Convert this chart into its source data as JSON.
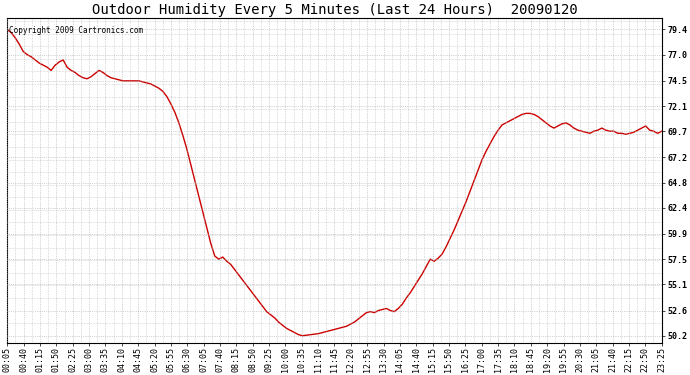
{
  "title": "Outdoor Humidity Every 5 Minutes (Last 24 Hours)  20090120",
  "copyright_text": "Copyright 2009 Cartronics.com",
  "background_color": "#ffffff",
  "plot_bg_color": "#ffffff",
  "line_color": "#cc0000",
  "line_width": 1.0,
  "ylim": [
    49.5,
    80.5
  ],
  "yticks": [
    50.2,
    52.6,
    55.1,
    57.5,
    59.9,
    62.4,
    64.8,
    67.2,
    69.7,
    72.1,
    74.5,
    77.0,
    79.4
  ],
  "grid_color": "#aaaaaa",
  "title_fontsize": 10,
  "tick_fontsize": 6,
  "copyright_fontsize": 5.5,
  "xtick_labels": [
    "00:05",
    "00:40",
    "01:15",
    "01:50",
    "02:25",
    "03:00",
    "03:35",
    "04:10",
    "04:45",
    "05:20",
    "05:55",
    "06:30",
    "07:05",
    "07:40",
    "08:15",
    "08:50",
    "09:25",
    "10:00",
    "10:35",
    "11:10",
    "11:45",
    "12:20",
    "12:55",
    "13:30",
    "14:05",
    "14:40",
    "15:15",
    "15:50",
    "16:25",
    "17:00",
    "17:35",
    "18:10",
    "18:45",
    "19:20",
    "19:55",
    "20:30",
    "21:05",
    "21:40",
    "22:15",
    "22:50",
    "23:25"
  ],
  "humidity_values": [
    79.4,
    79.1,
    78.6,
    78.0,
    77.3,
    77.0,
    76.8,
    76.5,
    76.2,
    76.0,
    75.8,
    75.5,
    76.0,
    76.3,
    76.5,
    75.8,
    75.5,
    75.3,
    75.0,
    74.8,
    74.7,
    74.9,
    75.2,
    75.5,
    75.3,
    75.0,
    74.8,
    74.7,
    74.6,
    74.5,
    74.5,
    74.5,
    74.5,
    74.5,
    74.4,
    74.3,
    74.2,
    74.0,
    73.8,
    73.5,
    73.0,
    72.3,
    71.5,
    70.5,
    69.3,
    68.0,
    66.5,
    65.0,
    63.5,
    62.0,
    60.5,
    59.0,
    57.8,
    57.5,
    57.7,
    57.3,
    57.0,
    56.5,
    56.0,
    55.5,
    55.0,
    54.5,
    54.0,
    53.5,
    53.0,
    52.5,
    52.2,
    51.9,
    51.5,
    51.2,
    50.9,
    50.7,
    50.5,
    50.3,
    50.2,
    50.25,
    50.3,
    50.35,
    50.4,
    50.5,
    50.6,
    50.7,
    50.8,
    50.9,
    51.0,
    51.1,
    51.3,
    51.5,
    51.8,
    52.1,
    52.4,
    52.5,
    52.4,
    52.6,
    52.7,
    52.8,
    52.6,
    52.5,
    52.8,
    53.2,
    53.8,
    54.3,
    54.9,
    55.5,
    56.1,
    56.8,
    57.5,
    57.3,
    57.6,
    58.0,
    58.7,
    59.5,
    60.3,
    61.2,
    62.1,
    63.0,
    64.0,
    65.0,
    66.0,
    67.0,
    67.8,
    68.5,
    69.2,
    69.8,
    70.3,
    70.5,
    70.7,
    70.9,
    71.1,
    71.3,
    71.4,
    71.4,
    71.3,
    71.1,
    70.8,
    70.5,
    70.2,
    70.0,
    70.2,
    70.4,
    70.5,
    70.3,
    70.0,
    69.8,
    69.7,
    69.6,
    69.5,
    69.7,
    69.8,
    70.0,
    69.8,
    69.7,
    69.7,
    69.5,
    69.5,
    69.4,
    69.5,
    69.6,
    69.8,
    70.0,
    70.2,
    69.8,
    69.7,
    69.5,
    69.7
  ]
}
